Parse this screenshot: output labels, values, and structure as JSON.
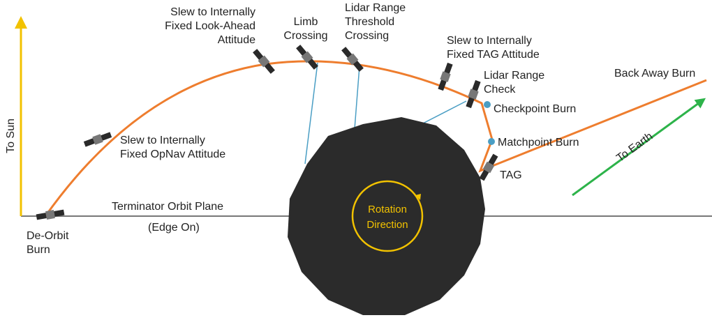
{
  "labels": {
    "to_sun": "To Sun",
    "look_ahead": [
      "Slew to Internally",
      "Fixed Look-Ahead",
      "Attitude"
    ],
    "limb": [
      "Limb",
      "Crossing"
    ],
    "lidar_threshold": [
      "Lidar Range",
      "Threshold",
      "Crossing"
    ],
    "tag_attitude": [
      "Slew to Internally",
      "Fixed TAG Attitude"
    ],
    "lidar_check": [
      "Lidar Range",
      "Check"
    ],
    "back_away": "Back Away Burn",
    "checkpoint": "Checkpoint Burn",
    "opnav": [
      "Slew to Internally",
      "Fixed OpNav Attitude"
    ],
    "matchpoint": "Matchpoint Burn",
    "to_earth": "To Earth",
    "tag": "TAG",
    "terminator": [
      "Terminator Orbit Plane",
      "(Edge On)"
    ],
    "de_orbit": [
      "De-Orbit",
      "Burn"
    ],
    "rotation": [
      "Rotation",
      "Direction"
    ]
  }
}
